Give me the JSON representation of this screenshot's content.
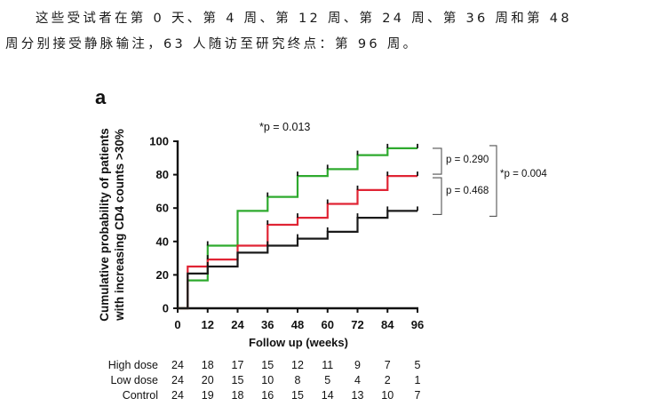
{
  "document": {
    "paragraph_line_1": "这些受试者在第 0 天、第 4 周、第 12 周、第 24 周、第 36 周和第 48",
    "paragraph_line_2": "周分别接受静脉输注，63 人随访至研究终点：第 96 周。"
  },
  "chart_data": {
    "type": "line",
    "step": true,
    "panel_label": "a",
    "title": "*p = 0.013",
    "xlabel": "Follow up (weeks)",
    "ylabel_line1": "Cumulative probability of patients",
    "ylabel_line2": "with increasing CD4 counts >30%",
    "xlim": [
      0,
      96
    ],
    "ylim": [
      0,
      100
    ],
    "xticks": [
      "0",
      "12",
      "24",
      "36",
      "48",
      "60",
      "72",
      "84",
      "96"
    ],
    "yticks": [
      "0",
      "20",
      "40",
      "60",
      "80",
      "100"
    ],
    "series": [
      {
        "name": "High dose",
        "color": "#2eaa2e",
        "x": [
          0,
          4,
          4,
          12,
          12,
          24,
          24,
          36,
          36,
          48,
          48,
          60,
          60,
          72,
          72,
          84,
          84,
          96
        ],
        "y": [
          0,
          0,
          16.7,
          16.7,
          37.5,
          37.5,
          58.3,
          58.3,
          66.7,
          66.7,
          79.2,
          79.2,
          83.3,
          83.3,
          91.7,
          91.7,
          95.8,
          95.8
        ],
        "censor_x": [
          12,
          36,
          48,
          60,
          72,
          84,
          96
        ]
      },
      {
        "name": "Low dose",
        "color": "#e02434",
        "x": [
          0,
          4,
          4,
          12,
          12,
          24,
          24,
          36,
          36,
          48,
          48,
          60,
          60,
          72,
          72,
          84,
          84,
          96
        ],
        "y": [
          0,
          0,
          25,
          25,
          29.2,
          29.2,
          37.5,
          37.5,
          50,
          50,
          54.2,
          54.2,
          62.5,
          62.5,
          70.8,
          70.8,
          79.2,
          79.2
        ],
        "censor_x": [
          12,
          36,
          48,
          60,
          72,
          84,
          96
        ]
      },
      {
        "name": "Control",
        "color": "#1a1a1a",
        "x": [
          0,
          4,
          4,
          12,
          12,
          24,
          24,
          36,
          36,
          48,
          48,
          60,
          60,
          72,
          72,
          84,
          84,
          96
        ],
        "y": [
          0,
          0,
          20.8,
          20.8,
          25,
          25,
          33.3,
          33.3,
          37.5,
          37.5,
          41.7,
          41.7,
          45.8,
          45.8,
          54.2,
          54.2,
          58.3,
          58.3
        ],
        "censor_x": [
          12,
          36,
          48,
          60,
          72,
          84,
          96
        ]
      }
    ],
    "annotations": {
      "p_high_low": "p = 0.290",
      "p_low_control": "p = 0.468",
      "p_high_control": "*p = 0.004"
    },
    "risk_table": {
      "x": [
        0,
        12,
        24,
        36,
        48,
        60,
        72,
        84,
        96
      ],
      "rows": [
        {
          "label": "High dose",
          "values": [
            "24",
            "18",
            "17",
            "15",
            "12",
            "11",
            "9",
            "7",
            "5"
          ]
        },
        {
          "label": "Low dose",
          "values": [
            "24",
            "20",
            "15",
            "10",
            "8",
            "5",
            "4",
            "2",
            "1"
          ]
        },
        {
          "label": "Control",
          "values": [
            "24",
            "19",
            "18",
            "16",
            "15",
            "14",
            "13",
            "10",
            "7"
          ]
        }
      ]
    }
  }
}
